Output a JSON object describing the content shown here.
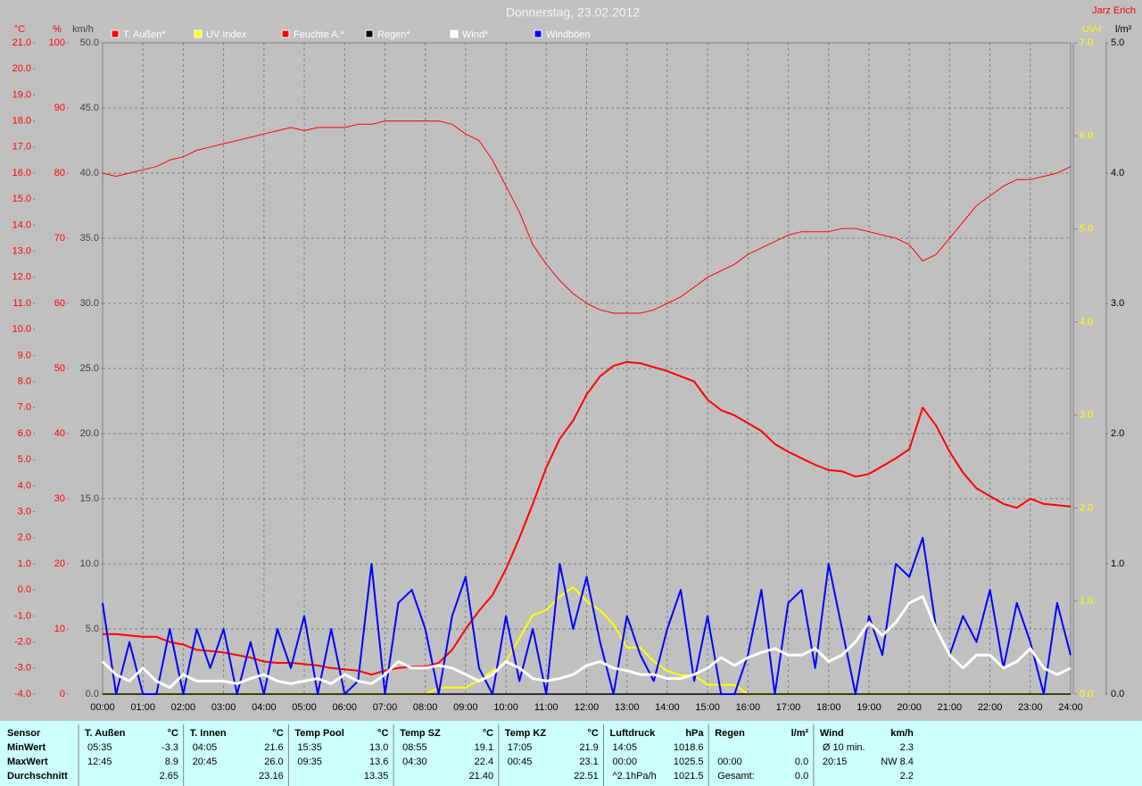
{
  "author": "Jarz Erich",
  "chart_data": {
    "type": "line",
    "title": "Donnerstag, 23.02.2012",
    "x": [
      0,
      20,
      40,
      60,
      80,
      100,
      120,
      140,
      160,
      180,
      200,
      220,
      240,
      260,
      280,
      300,
      320,
      340,
      360,
      380,
      400,
      420,
      440,
      460,
      480,
      500,
      520,
      540,
      560,
      580,
      600,
      620,
      640,
      660,
      680,
      700,
      720,
      740,
      760,
      780,
      800,
      820,
      840,
      860,
      880,
      900,
      920,
      940,
      960,
      980,
      1000,
      1020,
      1040,
      1060,
      1080,
      1100,
      1120,
      1140,
      1160,
      1180,
      1200,
      1220,
      1240,
      1260,
      1280,
      1300,
      1320,
      1340,
      1360,
      1380,
      1400,
      1420,
      1440
    ],
    "xlim": [
      0,
      1440
    ],
    "xticks": [
      {
        "value": 0,
        "label": "00:00"
      },
      {
        "value": 60,
        "label": "01:00"
      },
      {
        "value": 120,
        "label": "02:00"
      },
      {
        "value": 180,
        "label": "03:00"
      },
      {
        "value": 240,
        "label": "04:00"
      },
      {
        "value": 300,
        "label": "05:00"
      },
      {
        "value": 360,
        "label": "06:00"
      },
      {
        "value": 420,
        "label": "07:00"
      },
      {
        "value": 480,
        "label": "08:00"
      },
      {
        "value": 540,
        "label": "09:00"
      },
      {
        "value": 600,
        "label": "10:00"
      },
      {
        "value": 660,
        "label": "11:00"
      },
      {
        "value": 720,
        "label": "12:00"
      },
      {
        "value": 780,
        "label": "13:00"
      },
      {
        "value": 840,
        "label": "14:00"
      },
      {
        "value": 900,
        "label": "15:00"
      },
      {
        "value": 960,
        "label": "16:00"
      },
      {
        "value": 1020,
        "label": "17:00"
      },
      {
        "value": 1080,
        "label": "18:00"
      },
      {
        "value": 1140,
        "label": "19:00"
      },
      {
        "value": 1200,
        "label": "20:00"
      },
      {
        "value": 1260,
        "label": "21:00"
      },
      {
        "value": 1320,
        "label": "22:00"
      },
      {
        "value": 1380,
        "label": "23:00"
      },
      {
        "value": 1440,
        "label": "24:00"
      }
    ],
    "grid": true,
    "axes": [
      {
        "label": "°C",
        "color": "#ff0000",
        "lim": [
          -4,
          21
        ],
        "ticks": [
          {
            "value": -4,
            "label": "-4.0"
          },
          {
            "value": -3,
            "label": "-3.0"
          },
          {
            "value": -2,
            "label": "-2.0"
          },
          {
            "value": -1,
            "label": "-1.0"
          },
          {
            "value": 0,
            "label": "0.0"
          },
          {
            "value": 1,
            "label": "1.0"
          },
          {
            "value": 2,
            "label": "2.0"
          },
          {
            "value": 3,
            "label": "3.0"
          },
          {
            "value": 4,
            "label": "4.0"
          },
          {
            "value": 5,
            "label": "5.0"
          },
          {
            "value": 6,
            "label": "6.0"
          },
          {
            "value": 7,
            "label": "7.0"
          },
          {
            "value": 8,
            "label": "8.0"
          },
          {
            "value": 9,
            "label": "9.0"
          },
          {
            "value": 10,
            "label": "10.0"
          },
          {
            "value": 11,
            "label": "11.0"
          },
          {
            "value": 12,
            "label": "12.0"
          },
          {
            "value": 13,
            "label": "13.0"
          },
          {
            "value": 14,
            "label": "14.0"
          },
          {
            "value": 15,
            "label": "15.0"
          },
          {
            "value": 16,
            "label": "16.0"
          },
          {
            "value": 17,
            "label": "17.0"
          },
          {
            "value": 18,
            "label": "18.0"
          },
          {
            "value": 19,
            "label": "19.0"
          },
          {
            "value": 20,
            "label": "20.0"
          },
          {
            "value": 21,
            "label": "21.0"
          }
        ]
      },
      {
        "label": "%",
        "color": "#ff0000",
        "lim": [
          0,
          100
        ],
        "ticks": [
          0,
          10,
          20,
          30,
          40,
          50,
          60,
          70,
          80,
          90,
          100
        ]
      },
      {
        "label": "km/h",
        "color": "#404040",
        "grid": true,
        "lim": [
          0,
          50
        ],
        "ticks": [
          {
            "value": 0,
            "label": "0.0"
          },
          {
            "value": 5,
            "label": "5.0"
          },
          {
            "value": 10,
            "label": "10.0"
          },
          {
            "value": 15,
            "label": "15.0"
          },
          {
            "value": 20,
            "label": "20.0"
          },
          {
            "value": 25,
            "label": "25.0"
          },
          {
            "value": 30,
            "label": "30.0"
          },
          {
            "value": 35,
            "label": "35.0"
          },
          {
            "value": 40,
            "label": "40.0"
          },
          {
            "value": 45,
            "label": "45.0"
          },
          {
            "value": 50,
            "label": "50.0"
          }
        ]
      },
      {
        "label": "UV-I",
        "color": "#ffff00",
        "lim": [
          0,
          7
        ],
        "ticks": [
          {
            "value": 0,
            "label": "0.0"
          },
          {
            "value": 1,
            "label": "1.0"
          },
          {
            "value": 2,
            "label": "2.0"
          },
          {
            "value": 3,
            "label": "3.0"
          },
          {
            "value": 4,
            "label": "4.0"
          },
          {
            "value": 5,
            "label": "5.0"
          },
          {
            "value": 6,
            "label": "6.0"
          },
          {
            "value": 7,
            "label": "7.0"
          }
        ]
      },
      {
        "label": "l/m²",
        "color": "#000000",
        "lim": [
          0,
          5
        ],
        "ticks": [
          {
            "value": 0,
            "label": "0.0"
          },
          {
            "value": 1,
            "label": "1.0"
          },
          {
            "value": 2,
            "label": "2.0"
          },
          {
            "value": 3,
            "label": "3.0"
          },
          {
            "value": 4,
            "label": "4.0"
          },
          {
            "value": 5,
            "label": "5.0"
          }
        ]
      }
    ],
    "series": [
      {
        "name": "T. Außen*",
        "color": "#ff0000",
        "axis": "°C",
        "values": [
          -1.7,
          -1.7,
          -1.75,
          -1.8,
          -1.8,
          -2.0,
          -2.1,
          -2.3,
          -2.35,
          -2.4,
          -2.5,
          -2.6,
          -2.75,
          -2.8,
          -2.8,
          -2.85,
          -2.9,
          -3.0,
          -3.05,
          -3.1,
          -3.25,
          -3.1,
          -3.0,
          -2.95,
          -2.95,
          -2.8,
          -2.3,
          -1.5,
          -0.8,
          -0.2,
          0.8,
          2.0,
          3.3,
          4.7,
          5.8,
          6.5,
          7.5,
          8.2,
          8.6,
          8.75,
          8.7,
          8.55,
          8.4,
          8.2,
          8.0,
          7.3,
          6.9,
          6.7,
          6.4,
          6.1,
          5.6,
          5.3,
          5.05,
          4.8,
          4.6,
          4.55,
          4.35,
          4.45,
          4.75,
          5.05,
          5.4,
          7.0,
          6.3,
          5.3,
          4.5,
          3.9,
          3.6,
          3.3,
          3.15,
          3.5,
          3.3,
          3.25,
          3.2
        ]
      },
      {
        "name": "UV Index",
        "color": "#ffff00",
        "axis": "UV-I",
        "values": [
          0,
          0,
          0,
          0,
          0,
          0,
          0,
          0,
          0,
          0,
          0,
          0,
          0,
          0,
          0,
          0,
          0,
          0,
          0,
          0,
          0,
          0,
          0,
          0,
          0,
          0.07,
          0.07,
          0.07,
          0.15,
          0.25,
          0.35,
          0.6,
          0.85,
          0.9,
          1.05,
          1.15,
          1.0,
          0.9,
          0.75,
          0.5,
          0.5,
          0.35,
          0.25,
          0.2,
          0.2,
          0.1,
          0.1,
          0.1,
          0,
          0,
          0,
          0,
          0,
          0,
          0,
          0,
          0,
          0,
          0,
          0,
          0,
          0,
          0,
          0,
          0,
          0,
          0,
          0,
          0,
          0,
          0,
          0,
          0
        ]
      },
      {
        "name": "Feuchte A.*",
        "color": "#ff0000",
        "axis": "%",
        "values": [
          80,
          79.5,
          80,
          80.5,
          81,
          82,
          82.5,
          83.5,
          84,
          84.5,
          85,
          85.5,
          86,
          86.5,
          87,
          86.5,
          87,
          87,
          87,
          87.5,
          87.5,
          88,
          88,
          88,
          88,
          88,
          87.5,
          86,
          85,
          82,
          78,
          74,
          69,
          66,
          63.5,
          61.5,
          60,
          59,
          58.5,
          58.5,
          58.5,
          59,
          60,
          61,
          62.5,
          64,
          65,
          66,
          67.5,
          68.5,
          69.5,
          70.5,
          71,
          71,
          71,
          71.5,
          71.5,
          71,
          70.5,
          70,
          69,
          66.5,
          67.5,
          70,
          72.5,
          75,
          76.5,
          78,
          79,
          79,
          79.5,
          80,
          81
        ]
      },
      {
        "name": "Regen*",
        "color": "#000000",
        "axis": "l/m²",
        "values": [
          0,
          0,
          0,
          0,
          0,
          0,
          0,
          0,
          0,
          0,
          0,
          0,
          0,
          0,
          0,
          0,
          0,
          0,
          0,
          0,
          0,
          0,
          0,
          0,
          0,
          0,
          0,
          0,
          0,
          0,
          0,
          0,
          0,
          0,
          0,
          0,
          0,
          0,
          0,
          0,
          0,
          0,
          0,
          0,
          0,
          0,
          0,
          0,
          0,
          0,
          0,
          0,
          0,
          0,
          0,
          0,
          0,
          0,
          0,
          0,
          0,
          0,
          0,
          0,
          0,
          0,
          0,
          0,
          0,
          0,
          0,
          0,
          0
        ]
      },
      {
        "name": "Wind*",
        "color": "#ffffff",
        "axis": "km/h",
        "values": [
          2.5,
          1.5,
          1.0,
          2.0,
          1.0,
          0.5,
          1.5,
          1.0,
          1.0,
          1.0,
          0.8,
          1.2,
          1.5,
          1.0,
          0.8,
          1.0,
          1.2,
          0.8,
          1.5,
          1.0,
          0.8,
          1.5,
          2.5,
          2.0,
          2.0,
          2.2,
          2.0,
          1.5,
          1.0,
          1.5,
          2.5,
          2.0,
          1.2,
          1.0,
          1.2,
          1.5,
          2.2,
          2.5,
          2.0,
          1.8,
          1.5,
          1.5,
          1.2,
          1.2,
          1.5,
          2.0,
          2.8,
          2.2,
          2.8,
          3.2,
          3.5,
          3.0,
          3.0,
          3.5,
          2.5,
          3.0,
          4.0,
          5.5,
          4.5,
          5.5,
          7.0,
          7.5,
          5.0,
          3.0,
          2.0,
          3.0,
          3.0,
          2.0,
          2.5,
          3.5,
          2.0,
          1.5,
          2.0
        ]
      },
      {
        "name": "Windböen",
        "color": "#0000ff",
        "axis": "km/h",
        "values": [
          7,
          0,
          4,
          0,
          0,
          5,
          0,
          5,
          2,
          5,
          0,
          4,
          0,
          5,
          2,
          6,
          0,
          5,
          0,
          1,
          10,
          0,
          7,
          8,
          5,
          0,
          6,
          9,
          2,
          0,
          6,
          1,
          5,
          0,
          10,
          5,
          9,
          4,
          0,
          6,
          3,
          1,
          5,
          8,
          1,
          6,
          0,
          0,
          3,
          8,
          0,
          7,
          8,
          2,
          10,
          5,
          0,
          6,
          3,
          10,
          9,
          12,
          5,
          3,
          6,
          4,
          8,
          2,
          7,
          4,
          0,
          7,
          3
        ]
      }
    ]
  },
  "table": {
    "rows": [
      "Sensor",
      "MinWert",
      "MaxWert",
      "Durchschnitt"
    ],
    "blocks": [
      {
        "title": "T. Außen",
        "unit": "°C",
        "cells": [
          [
            "05:35",
            "-3.3"
          ],
          [
            "12:45",
            "8.9"
          ],
          [
            "2.65"
          ]
        ]
      },
      {
        "title": "T. Innen",
        "unit": "°C",
        "cells": [
          [
            "04:05",
            "21.6"
          ],
          [
            "20:45",
            "26.0"
          ],
          [
            "23.16"
          ]
        ]
      },
      {
        "title": "Temp Pool",
        "unit": "°C",
        "cells": [
          [
            "15:35",
            "13.0"
          ],
          [
            "09:35",
            "13.6"
          ],
          [
            "13.35"
          ]
        ]
      },
      {
        "title": "Temp SZ",
        "unit": "°C",
        "cells": [
          [
            "08:55",
            "19.1"
          ],
          [
            "04:30",
            "22.4"
          ],
          [
            "21.40"
          ]
        ]
      },
      {
        "title": "Temp KZ",
        "unit": "°C",
        "cells": [
          [
            "17:05",
            "21.9"
          ],
          [
            "00:45",
            "23.1"
          ],
          [
            "22.51"
          ]
        ]
      },
      {
        "title": "Luftdruck",
        "unit": "hPa",
        "cells": [
          [
            "14:05",
            "1018.6"
          ],
          [
            "00:00",
            "1025.5"
          ],
          [
            "^2.1hPa/h",
            "1021.5"
          ]
        ]
      },
      {
        "title": "Regen",
        "unit": "l/m²",
        "cells": [
          [],
          [
            "00:00",
            "0.0"
          ],
          [
            "Gesamt:",
            "0.0"
          ]
        ]
      },
      {
        "title": "Wind",
        "unit": "km/h",
        "cells": [
          [
            "Ø 10 min.",
            "2.3"
          ],
          [
            "20:15",
            "NW 8.4"
          ],
          [
            "2.2"
          ]
        ]
      }
    ]
  }
}
